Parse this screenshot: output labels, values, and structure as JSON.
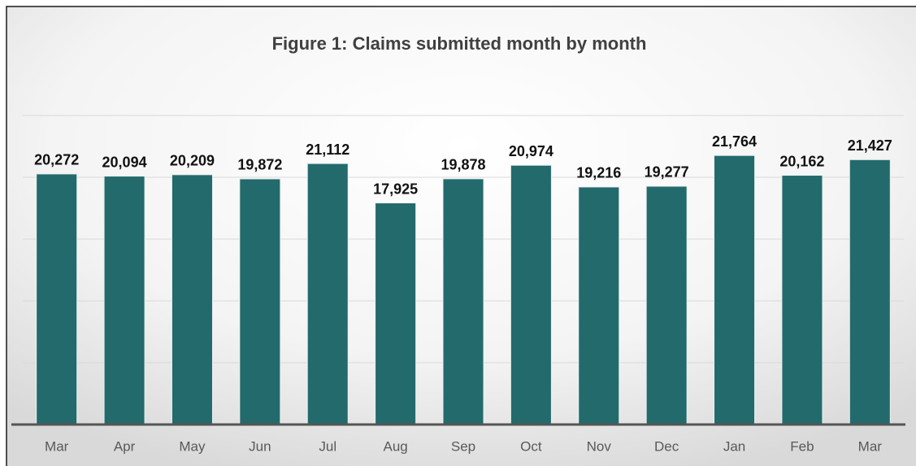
{
  "chart_data": {
    "type": "bar",
    "title": "Figure 1: Claims submitted month by month",
    "categories": [
      "Mar",
      "Apr",
      "May",
      "Jun",
      "Jul",
      "Aug",
      "Sep",
      "Oct",
      "Nov",
      "Dec",
      "Jan",
      "Feb",
      "Mar"
    ],
    "values": [
      20272,
      20094,
      20209,
      19872,
      21112,
      17925,
      19878,
      20974,
      19216,
      19277,
      21764,
      20162,
      21427
    ],
    "value_labels": [
      "20,272",
      "20,094",
      "20,209",
      "19,872",
      "21,112",
      "17,925",
      "19,878",
      "20,974",
      "19,216",
      "19,277",
      "21,764",
      "20,162",
      "21,427"
    ],
    "color": "#236a6c",
    "ylim": [
      0,
      25000
    ],
    "yticks": [
      0,
      5000,
      10000,
      15000,
      20000,
      25000
    ],
    "grid": true
  }
}
